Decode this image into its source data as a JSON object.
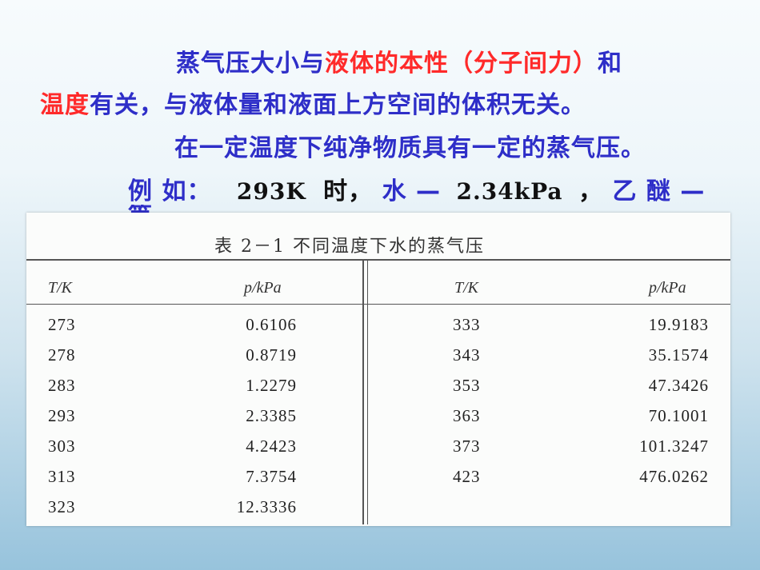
{
  "text": {
    "para1": {
      "s1": "蒸气压大小与",
      "s2": "液体的本性（分子间力）",
      "s3": "和",
      "s4": "温度",
      "s5": "有关，与液体量和液面上方空间的体积无关。"
    },
    "para2": "在一定温度下纯净物质具有一定的蒸气压。",
    "example": {
      "label": "例 如：",
      "temp": "293K",
      "shi": "时，",
      "water": "水 —",
      "water_val": "2.34kPa",
      "comma": "，",
      "ether": "乙 醚 —",
      "cutoff": "等"
    }
  },
  "table": {
    "caption": "表 2－1  不同温度下水的蒸气压",
    "headers": {
      "t_left": "T/K",
      "p_left": "p/kPa",
      "t_right": "T/K",
      "p_right": "p/kPa"
    },
    "left_rows": [
      {
        "t": "273",
        "p": "0.6106"
      },
      {
        "t": "278",
        "p": "0.8719"
      },
      {
        "t": "283",
        "p": "1.2279"
      },
      {
        "t": "293",
        "p": "2.3385"
      },
      {
        "t": "303",
        "p": "4.2423"
      },
      {
        "t": "313",
        "p": "7.3754"
      },
      {
        "t": "323",
        "p": "12.3336"
      }
    ],
    "right_rows": [
      {
        "t": "333",
        "p": "19.9183"
      },
      {
        "t": "343",
        "p": "35.1574"
      },
      {
        "t": "353",
        "p": "47.3426"
      },
      {
        "t": "363",
        "p": "70.1001"
      },
      {
        "t": "373",
        "p": "101.3247"
      },
      {
        "t": "423",
        "p": "476.0262"
      }
    ]
  },
  "colors": {
    "blue_text": "#2e2ec8",
    "red_text": "#ff2a2a",
    "background_bottom": "#97c3dc"
  }
}
